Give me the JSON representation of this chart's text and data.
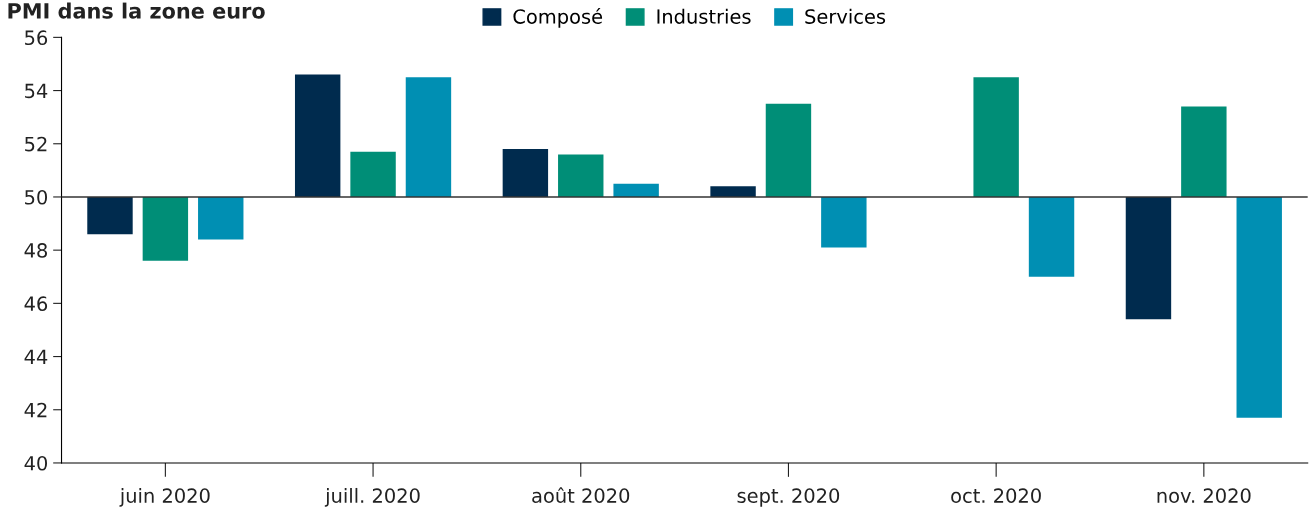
{
  "chart_data": {
    "type": "bar",
    "title": "PMI dans la zone euro",
    "categories": [
      "juin 2020",
      "juill. 2020",
      "août 2020",
      "sept. 2020",
      "oct. 2020",
      "nov. 2020"
    ],
    "series": [
      {
        "name": "Composé",
        "color": "#002b4e",
        "base": [
          50,
          50,
          50,
          50,
          null,
          50
        ],
        "values": [
          -1.4,
          4.6,
          1.8,
          0.4,
          null,
          -4.6
        ]
      },
      {
        "name": "Industries",
        "color": "#008e77",
        "base": [
          50,
          50,
          50,
          50,
          50,
          50
        ],
        "values": [
          -2.4,
          1.7,
          1.6,
          3.5,
          4.5,
          3.4
        ]
      },
      {
        "name": "Services",
        "color": "#008fb3",
        "base": [
          50,
          50,
          50,
          50,
          50,
          50
        ],
        "values": [
          -1.6,
          4.5,
          0.5,
          -1.9,
          -3.0,
          -8.3
        ]
      }
    ],
    "ylim": [
      40,
      56
    ],
    "yticks": [
      40,
      42,
      44,
      46,
      48,
      50,
      52,
      54,
      56
    ],
    "ref_lines": [
      {
        "axis": "y",
        "value": 50,
        "color": "#333333"
      }
    ],
    "grid": false,
    "legend": "top"
  }
}
